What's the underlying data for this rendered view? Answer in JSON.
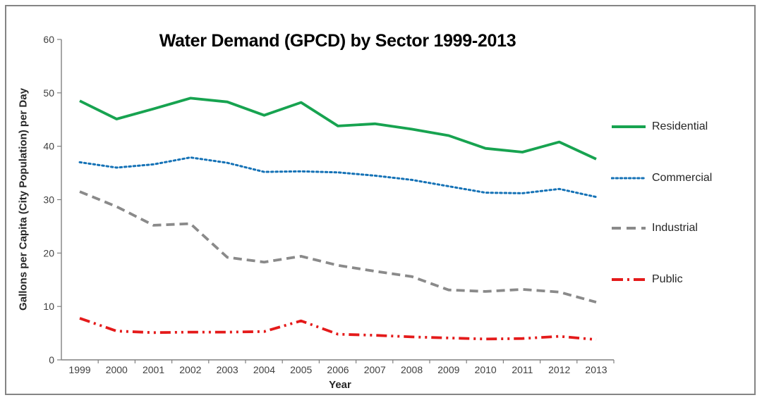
{
  "chart_data": {
    "type": "line",
    "title": "Water Demand (GPCD) by Sector 1999-2013",
    "xlabel": "Year",
    "ylabel": "Gallons per Capita (City Population) per Day",
    "x": [
      1999,
      2000,
      2001,
      2002,
      2003,
      2004,
      2005,
      2006,
      2007,
      2008,
      2009,
      2010,
      2011,
      2012,
      2013
    ],
    "ylim": [
      0,
      60
    ],
    "yticks": [
      0,
      10,
      20,
      30,
      40,
      50,
      60
    ],
    "grid": false,
    "legend_position": "right",
    "axis_color": "#808080",
    "tick_label_color": "#3F3F3F",
    "frame_color": "#848484",
    "series": [
      {
        "name": "Residential",
        "color": "#17A350",
        "style": "solid",
        "values": [
          48.5,
          45.1,
          47.0,
          49.0,
          48.3,
          45.8,
          48.2,
          43.8,
          44.2,
          43.2,
          42.0,
          39.6,
          38.9,
          40.8,
          37.6
        ]
      },
      {
        "name": "Commercial",
        "color": "#1572B6",
        "style": "dotted",
        "values": [
          37.0,
          36.0,
          36.6,
          37.9,
          36.9,
          35.2,
          35.3,
          35.1,
          34.5,
          33.7,
          32.5,
          31.3,
          31.2,
          32.0,
          30.5
        ]
      },
      {
        "name": "Industrial",
        "color": "#8A8A8A",
        "style": "dashed",
        "values": [
          31.5,
          28.7,
          25.2,
          25.5,
          19.2,
          18.3,
          19.4,
          17.7,
          16.6,
          15.6,
          13.1,
          12.8,
          13.2,
          12.7,
          10.8
        ]
      },
      {
        "name": "Public",
        "color": "#E41A1A",
        "style": "dash-dot",
        "values": [
          7.8,
          5.4,
          5.1,
          5.2,
          5.2,
          5.3,
          7.3,
          4.8,
          4.6,
          4.3,
          4.1,
          3.9,
          4.0,
          4.4,
          3.8
        ]
      }
    ]
  }
}
